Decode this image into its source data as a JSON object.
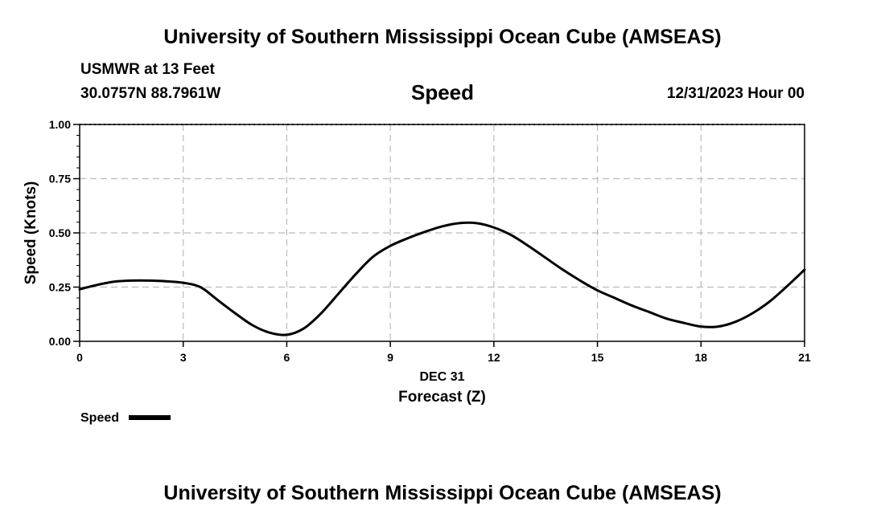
{
  "header": {
    "title_top": "University of Southern Mississippi Ocean Cube (AMSEAS)",
    "station": "USMWR at 13 Feet",
    "coords": "30.0757N  88.7961W",
    "variable": "Speed",
    "datetime": "12/31/2023 Hour 00",
    "title_bottom": "University of Southern Mississippi Ocean Cube (AMSEAS)"
  },
  "colors": {
    "line": "#000000",
    "grid": "#bbbbbb"
  },
  "chart_data": {
    "type": "line",
    "title": "Speed",
    "xlabel": "Forecast (Z)",
    "xlabel_date": "DEC 31",
    "ylabel": "Speed (Knots)",
    "xlim": [
      0,
      21
    ],
    "ylim": [
      0,
      1
    ],
    "x_ticks": [
      0,
      3,
      6,
      9,
      12,
      15,
      18,
      21
    ],
    "x_tick_labels": [
      "0",
      "3",
      "6",
      "9",
      "12",
      "15",
      "18",
      "21"
    ],
    "y_ticks": [
      0,
      0.25,
      0.5,
      0.75,
      1.0
    ],
    "y_tick_labels": [
      "0.00",
      "0.25",
      "0.50",
      "0.75",
      "1.00"
    ],
    "grid": true,
    "legend": {
      "position": "bottom-left",
      "label": "Speed"
    },
    "series": [
      {
        "name": "Speed",
        "x": [
          0,
          0.5,
          1,
          1.5,
          2,
          2.5,
          3,
          3.5,
          4,
          4.5,
          5,
          5.5,
          6,
          6.5,
          7,
          7.5,
          8,
          8.5,
          9,
          9.5,
          10,
          10.5,
          11,
          11.5,
          12,
          12.5,
          13,
          13.5,
          14,
          14.5,
          15,
          15.5,
          16,
          16.5,
          17,
          17.5,
          18,
          18.5,
          19,
          19.5,
          20,
          20.5,
          21
        ],
        "values": [
          0.24,
          0.26,
          0.275,
          0.28,
          0.28,
          0.277,
          0.27,
          0.25,
          0.19,
          0.13,
          0.075,
          0.04,
          0.03,
          0.06,
          0.13,
          0.22,
          0.31,
          0.39,
          0.44,
          0.475,
          0.505,
          0.53,
          0.545,
          0.545,
          0.525,
          0.49,
          0.44,
          0.385,
          0.33,
          0.28,
          0.235,
          0.2,
          0.165,
          0.135,
          0.105,
          0.085,
          0.068,
          0.068,
          0.09,
          0.13,
          0.185,
          0.255,
          0.33
        ]
      }
    ]
  }
}
